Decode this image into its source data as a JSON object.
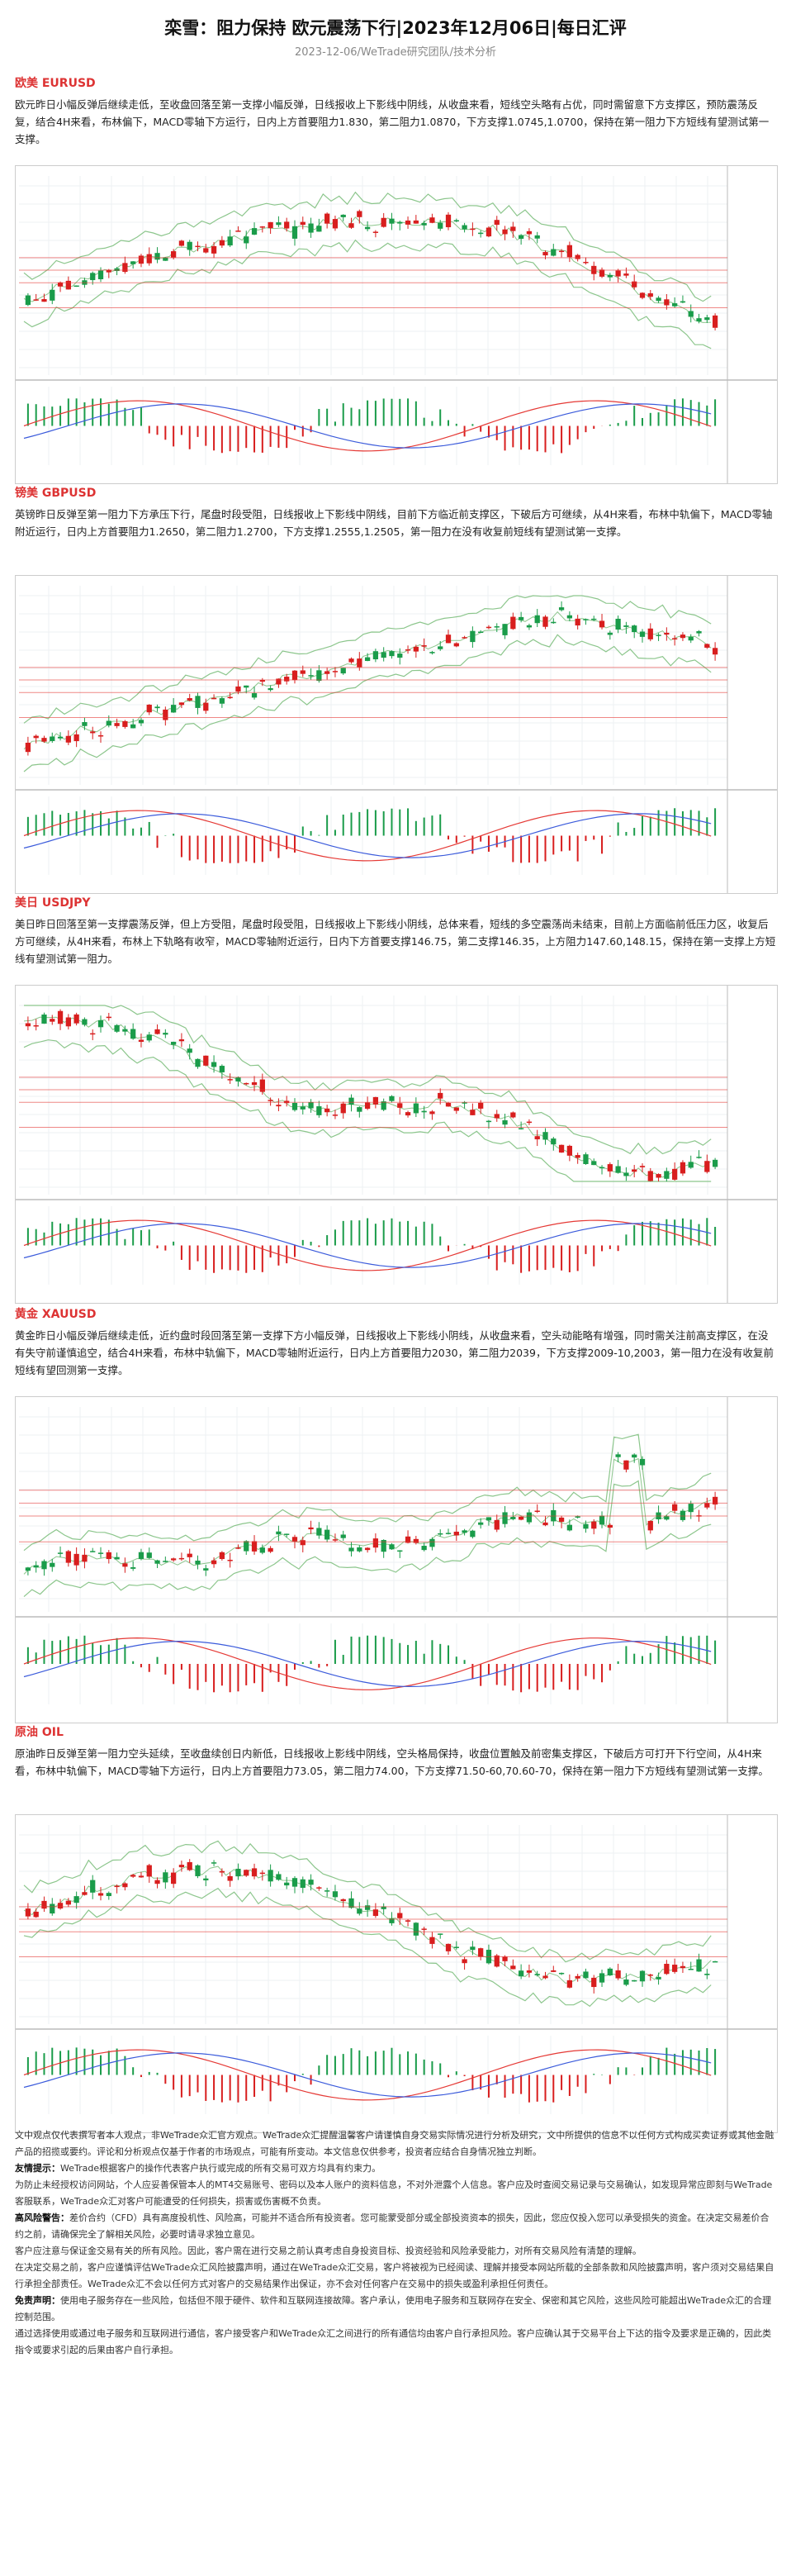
{
  "header": {
    "title": "栾雪：阻力保持 欧元震荡下行|2023年12月06日|每日汇评",
    "subtitle": "2023-12-06/WeTrade研究团队/技术分析"
  },
  "sections": [
    {
      "heading": "欧美 EURUSD",
      "text": "欧元昨日小幅反弹后继续走低，至收盘回落至第一支撑小幅反弹，日线报收上下影线中阴线，从收盘来看，短线空头略有占优，同时需留意下方支撑区，预防震荡反复，结合4H来看，布林偏下，MACD零轴下方运行，日内上方首要阻力1.830，第二阻力1.0870，下方支撑1.0745,1.0700，保持在第一阻力下方短线有望测试第一支撑。",
      "colors": {
        "up": "#1a9c4a",
        "down": "#d81e1e",
        "band": "#8cc68c"
      }
    },
    {
      "heading": "镑美 GBPUSD",
      "text": "英镑昨日反弹至第一阻力下方承压下行，尾盘时段受阻，日线报收上下影线中阴线，目前下方临近前支撑区，下破后方可继续，从4H来看，布林中轨偏下，MACD零轴附近运行，日内上方首要阻力1.2650，第二阻力1.2700，下方支撑1.2555,1.2505，第一阻力在没有收复前短线有望测试第一支撑。",
      "colors": {
        "up": "#1a9c4a",
        "down": "#d81e1e",
        "band": "#8cc68c"
      }
    },
    {
      "heading": "美日 USDJPY",
      "text": "美日昨日回落至第一支撑震荡反弹，但上方受阻，尾盘时段受阻，日线报收上下影线小阴线，总体来看，短线的多空震荡尚未结束，目前上方面临前低压力区，收复后方可继续，从4H来看，布林上下轨略有收窄，MACD零轴附近运行，日内下方首要支撑146.75，第二支撑146.35，上方阻力147.60,148.15，保持在第一支撑上方短线有望测试第一阻力。",
      "colors": {
        "up": "#1a9c4a",
        "down": "#d81e1e",
        "band": "#8cc68c"
      }
    },
    {
      "heading": "黄金 XAUUSD",
      "text": "黄金昨日小幅反弹后继续走低，近约盘时段回落至第一支撑下方小幅反弹，日线报收上下影线小阴线，从收盘来看，空头动能略有增强，同时需关注前高支撑区，在没有失守前谨慎追空，结合4H来看，布林中轨偏下，MACD零轴附近运行，日内上方首要阻力2030，第二阻力2039，下方支撑2009-10,2003，第一阻力在没有收复前短线有望回测第一支撑。",
      "colors": {
        "up": "#1a9c4a",
        "down": "#d81e1e",
        "band": "#8cc68c"
      }
    },
    {
      "heading": "原油 OIL",
      "text": "原油昨日反弹至第一阻力空头延续，至收盘续创日内新低，日线报收上影线中阴线，空头格局保持，收盘位置触及前密集支撑区，下破后方可打开下行空间，从4H来看，布林中轨偏下，MACD零轴下方运行，日内上方首要阻力73.05，第二阻力74.00，下方支撑71.50-60,70.60-70，保持在第一阻力下方短线有望测试第一支撑。",
      "colors": {
        "up": "#1a9c4a",
        "down": "#d81e1e",
        "band": "#8cc68c"
      }
    }
  ],
  "footer": {
    "p1": "文中观点仅代表撰写者本人观点，非WeTrade众汇官方观点。WeTrade众汇提醒温馨客户请谨慎自身交易实际情况进行分析及研究，文中所提供的信息不以任何方式构成买卖证券或其他金融产品的招揽或要约。评论和分析观点仅基于作者的市场观点，可能有所变动。本文信息仅供参考，投资者应结合自身情况独立判断。",
    "p2_label": "友情提示：",
    "p2": "WeTrade根据客户的操作代表客户执行或完成的所有交易可双方均具有约束力。",
    "p3": "为防止未经授权访问网站，个人应妥善保管本人的MT4交易账号、密码以及本人账户的资料信息，不对外泄露个人信息。客户应及时查阅交易记录与交易确认，如发现异常应即刻与WeTrade客服联系，WeTrade众汇对客户可能遭受的任何损失，损害或伤害概不负责。",
    "p4_label": "高风险警告：",
    "p4": "差价合约（CFD）具有高度投机性、风险高，可能并不适合所有投资者。您可能蒙受部分或全部投资资本的损失，因此，您应仅投入您可以承受损失的资金。在决定交易差价合约之前，请确保完全了解相关风险，必要时请寻求独立意见。",
    "p5": "客户应注意与保证金交易有关的所有风险。因此，客户需在进行交易之前认真考虑自身投资目标、投资经验和风险承受能力，对所有交易风险有清楚的理解。",
    "p6": "在决定交易之前，客户应谨慎评估WeTrade众汇风险披露声明，通过在WeTrade众汇交易，客户将被视为已经阅读、理解并接受本网站所载的全部条款和风险披露声明，客户须对交易结果自行承担全部责任。WeTrade众汇不会以任何方式对客户的交易结果作出保证，亦不会对任何客户在交易中的损失或盈利承担任何责任。",
    "p7_label": "免责声明：",
    "p7": "使用电子服务存在一些风险，包括但不限于硬件、软件和互联网连接故障。客户承认，使用电子服务和互联网存在安全、保密和其它风险，这些风险可能超出WeTrade众汇的合理控制范围。",
    "p8": "通过选择使用或通过电子服务和互联网进行通信，客户接受客户和WeTrade众汇之间进行的所有通信均由客户自行承担风险。客户应确认其于交易平台上下达的指令及要求是正确的，因此类指令或要求引起的后果由客户自行承担。"
  }
}
